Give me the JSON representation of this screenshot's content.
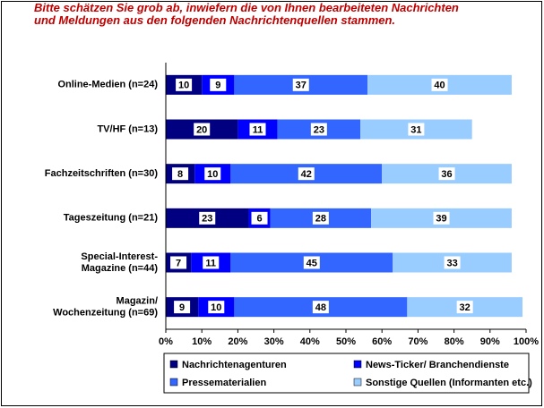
{
  "chart_data": {
    "type": "stacked-bar-horizontal",
    "title": "Bitte schätzen Sie grob ab, inwiefern die von Ihnen bearbeiteten Nachrichten\nund Meldungen aus den folgenden Nachrichtenquellen stammen.",
    "categories": [
      "Online-Medien (n=24)",
      "TV/HF (n=13)",
      "Fachzeitschriften (n=30)",
      "Tageszeitung (n=21)",
      "Special-Interest-\nMagazine (n=44)",
      "Magazin/\nWochenzeitung (n=69)"
    ],
    "series": [
      {
        "name": "Nachrichtenagenturen",
        "color": "#000080",
        "values": [
          10,
          20,
          8,
          23,
          7,
          9
        ]
      },
      {
        "name": "News-Ticker/ Branchendienste",
        "color": "#0000ff",
        "values": [
          9,
          11,
          10,
          6,
          11,
          10
        ]
      },
      {
        "name": "Pressematerialien",
        "color": "#3366ff",
        "values": [
          37,
          23,
          42,
          28,
          45,
          48
        ]
      },
      {
        "name": "Sonstige Quellen (Informanten etc.)",
        "color": "#99ccff",
        "values": [
          40,
          31,
          36,
          39,
          33,
          32
        ]
      }
    ],
    "xlim": [
      0,
      100
    ],
    "xticks": [
      {
        "value": 0,
        "label": "0%"
      },
      {
        "value": 10,
        "label": "10%"
      },
      {
        "value": 20,
        "label": "20%"
      },
      {
        "value": 30,
        "label": "30%"
      },
      {
        "value": 40,
        "label": "40%"
      },
      {
        "value": 50,
        "label": "50%"
      },
      {
        "value": 60,
        "label": "60%"
      },
      {
        "value": 70,
        "label": "70%"
      },
      {
        "value": 80,
        "label": "80%"
      },
      {
        "value": 90,
        "label": "90%"
      },
      {
        "value": 100,
        "label": "100%"
      }
    ],
    "legend": "bottom"
  }
}
